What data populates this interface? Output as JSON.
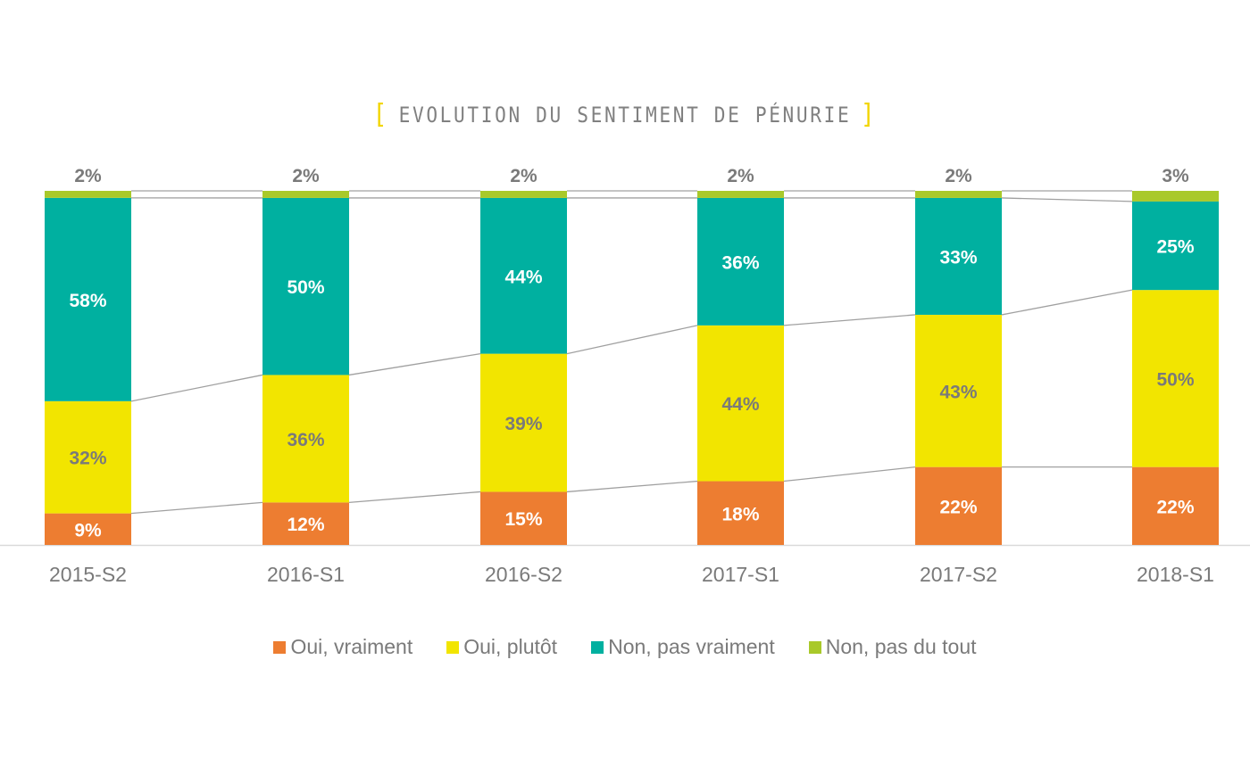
{
  "title": "EVOLUTION DU SENTIMENT DE PÉNURIE",
  "title_brackets": {
    "left": "[",
    "right": "]"
  },
  "colors": {
    "oui_vraiment": "#ed7d31",
    "oui_plutot": "#f2e500",
    "non_pas_vraiment": "#00b0a0",
    "non_pas_du_tout": "#a9c92a",
    "title_bracket": "#f2d500",
    "label_gray": "#7a7a7a",
    "connector": "#a0a0a0",
    "axis": "#d9d9d9"
  },
  "legend": [
    {
      "label": "Oui, vraiment",
      "color": "#ed7d31"
    },
    {
      "label": "Oui, plutôt",
      "color": "#f2e500"
    },
    {
      "label": "Non, pas vraiment",
      "color": "#00b0a0"
    },
    {
      "label": "Non, pas du tout",
      "color": "#a9c92a"
    }
  ],
  "chart_data": {
    "type": "bar",
    "stacked": true,
    "normalized": "percent",
    "title": "EVOLUTION DU SENTIMENT DE PÉNURIE",
    "xlabel": "",
    "ylabel": "",
    "ylim": [
      0,
      100
    ],
    "grid": false,
    "legend_position": "bottom",
    "categories": [
      "2015-S2",
      "2016-S1",
      "2016-S2",
      "2017-S1",
      "2017-S2",
      "2018-S1"
    ],
    "series": [
      {
        "name": "Oui, vraiment",
        "color": "#ed7d31",
        "label_color": "#ffffff",
        "values": [
          9,
          12,
          15,
          18,
          22,
          22
        ]
      },
      {
        "name": "Oui, plutôt",
        "color": "#f2e500",
        "label_color": "#7a7a7a",
        "values": [
          32,
          36,
          39,
          44,
          43,
          50
        ]
      },
      {
        "name": "Non, pas vraiment",
        "color": "#00b0a0",
        "label_color": "#ffffff",
        "values": [
          58,
          50,
          44,
          36,
          33,
          25
        ]
      },
      {
        "name": "Non, pas du tout",
        "color": "#a9c92a",
        "label_color": "#7a7a7a",
        "label_position": "above",
        "values": [
          2,
          2,
          2,
          2,
          2,
          3
        ]
      }
    ],
    "series_lines": true
  }
}
